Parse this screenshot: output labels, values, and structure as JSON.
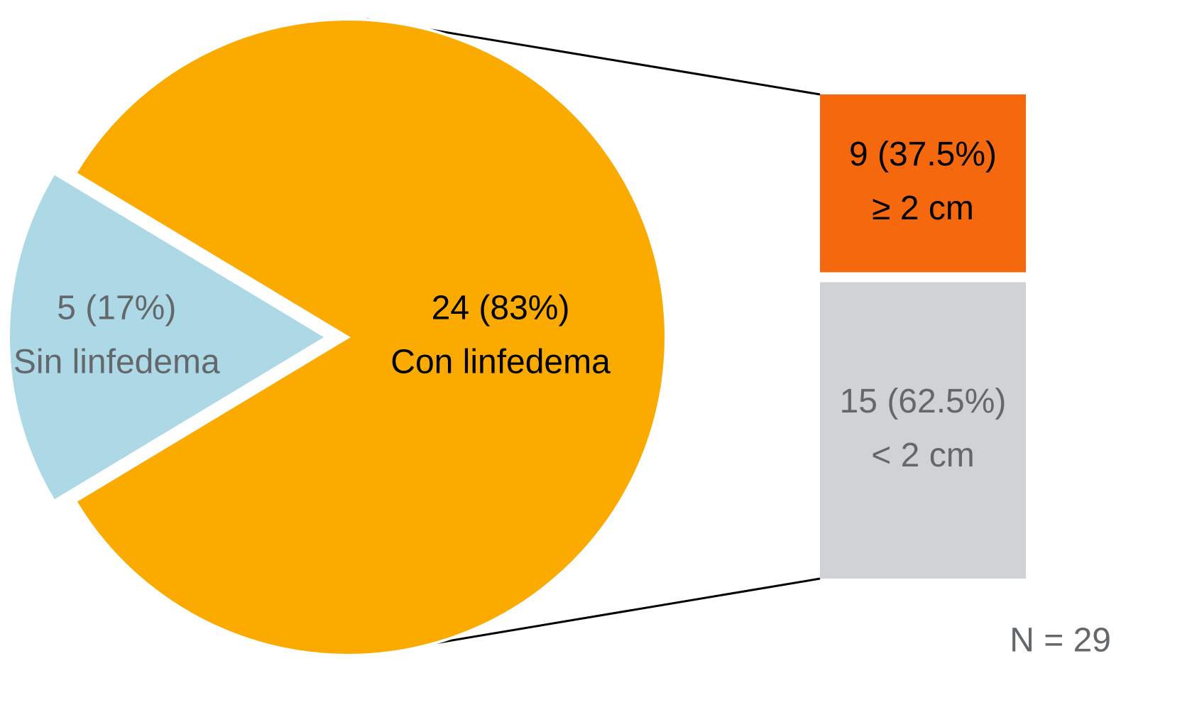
{
  "chart_data": [
    {
      "type": "pie",
      "categories": [
        "Con linfedema",
        "Sin linfedema"
      ],
      "values": [
        24,
        5
      ],
      "value_labels": [
        "24 (83%)",
        "5 (17%)"
      ],
      "colors": [
        "#fbaa00",
        "#add8e6"
      ],
      "label_colors": [
        "#000000",
        "#64686b"
      ],
      "annotation": "N = 29"
    },
    {
      "type": "bar",
      "categories": [
        "≥ 2 cm",
        "< 2 cm"
      ],
      "values": [
        9,
        15
      ],
      "value_labels": [
        "9 (37.5%)",
        "15 (62.5%)"
      ],
      "colors": [
        "#f5680d",
        "#d1d2d4"
      ],
      "label_colors": [
        "#000000",
        "#64686b"
      ]
    }
  ]
}
